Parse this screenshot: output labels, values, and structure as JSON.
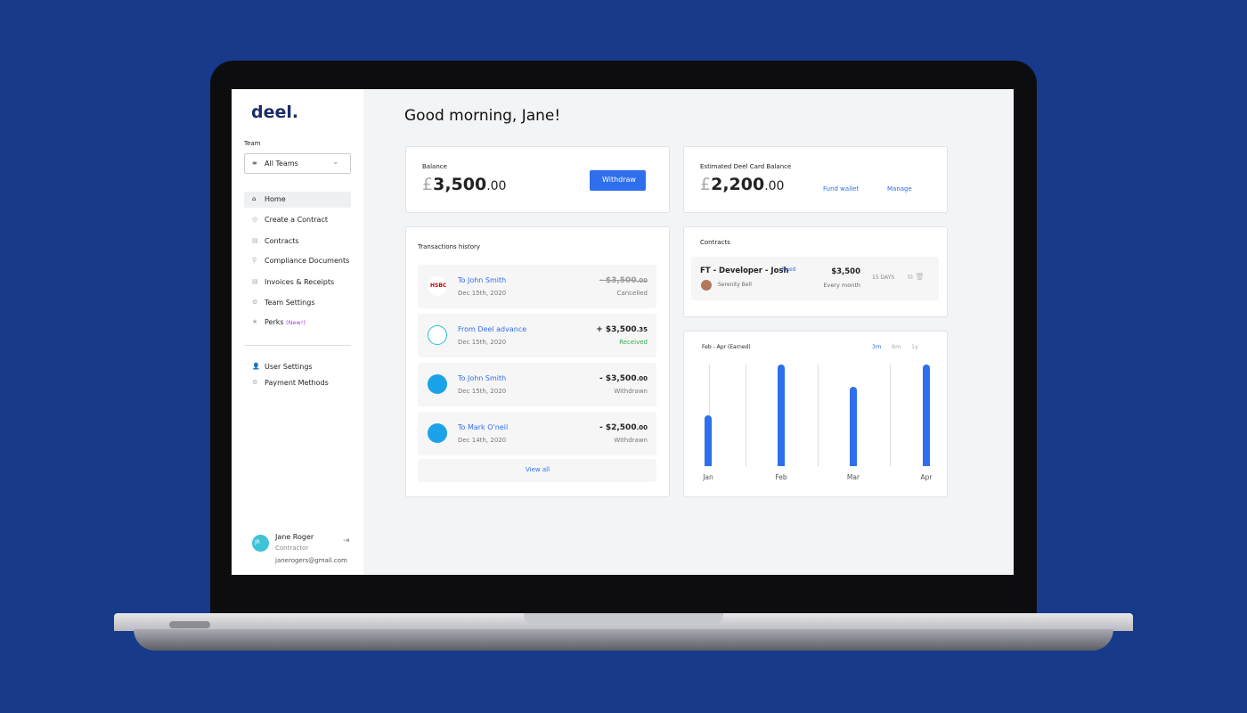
{
  "logo": "deel.",
  "sidebar": {
    "team_label": "Team",
    "team_select": "All Teams",
    "nav": [
      "Home",
      "Create a Contract",
      "Contracts",
      "Compliance Documents",
      "Invoices & Receipts",
      "Team Settings",
      "Perks"
    ],
    "perks_badge": "(New!)",
    "secondary_nav": [
      "User Settings",
      "Payment Methods"
    ],
    "user": {
      "initials": "JR",
      "name": "Jane Roger",
      "role": "Contractor",
      "email": "janerogers@gmail.com"
    }
  },
  "greeting": "Good morning, Jane!",
  "balance": {
    "label": "Balance",
    "currency": "£",
    "amount": "3,500",
    "cents": ".00",
    "button": "Withdraw"
  },
  "card_balance": {
    "label": "Estimated Deel Card Balance",
    "currency": "£",
    "amount": "2,200",
    "cents": ".00",
    "links": [
      "Fund wallet",
      "Manage"
    ]
  },
  "transactions": {
    "title": "Transactions history",
    "items": [
      {
        "icon": "HSBC",
        "title": "To John Smith",
        "date": "Dec 15th, 2020",
        "amount": "- $3,500",
        "cents": ".00",
        "status": "Cancelled"
      },
      {
        "title": "From Deel advance",
        "date": "Dec 15th, 2020",
        "amount": "+ $3,500",
        "cents": ".35",
        "status": "Received"
      },
      {
        "title": "To John Smith",
        "date": "Dec 15th, 2020",
        "amount": "- $3,500",
        "cents": ".00",
        "status": "Withdrawn"
      },
      {
        "title": "To Mark O'neil",
        "date": "Dec 14th, 2020",
        "amount": "- $2,500",
        "cents": ".00",
        "status": "Withdrawn"
      }
    ],
    "view_all": "View all"
  },
  "contracts": {
    "title": "Contracts",
    "items": [
      {
        "title": "FT - Developer - Josh",
        "tag": "Fixed",
        "person": "Serenity Bell",
        "amount": "$3,500",
        "frequency": "Every month",
        "due": "15 DAYS"
      }
    ]
  },
  "chart_data": {
    "type": "bar",
    "title": "Feb - Apr (Earned)",
    "ranges": [
      "3m",
      "6m",
      "1y"
    ],
    "categories": [
      "Jan",
      "Feb",
      "Mar",
      "Apr"
    ],
    "values": [
      50,
      100,
      78,
      100
    ],
    "color": "#2f6fed"
  }
}
